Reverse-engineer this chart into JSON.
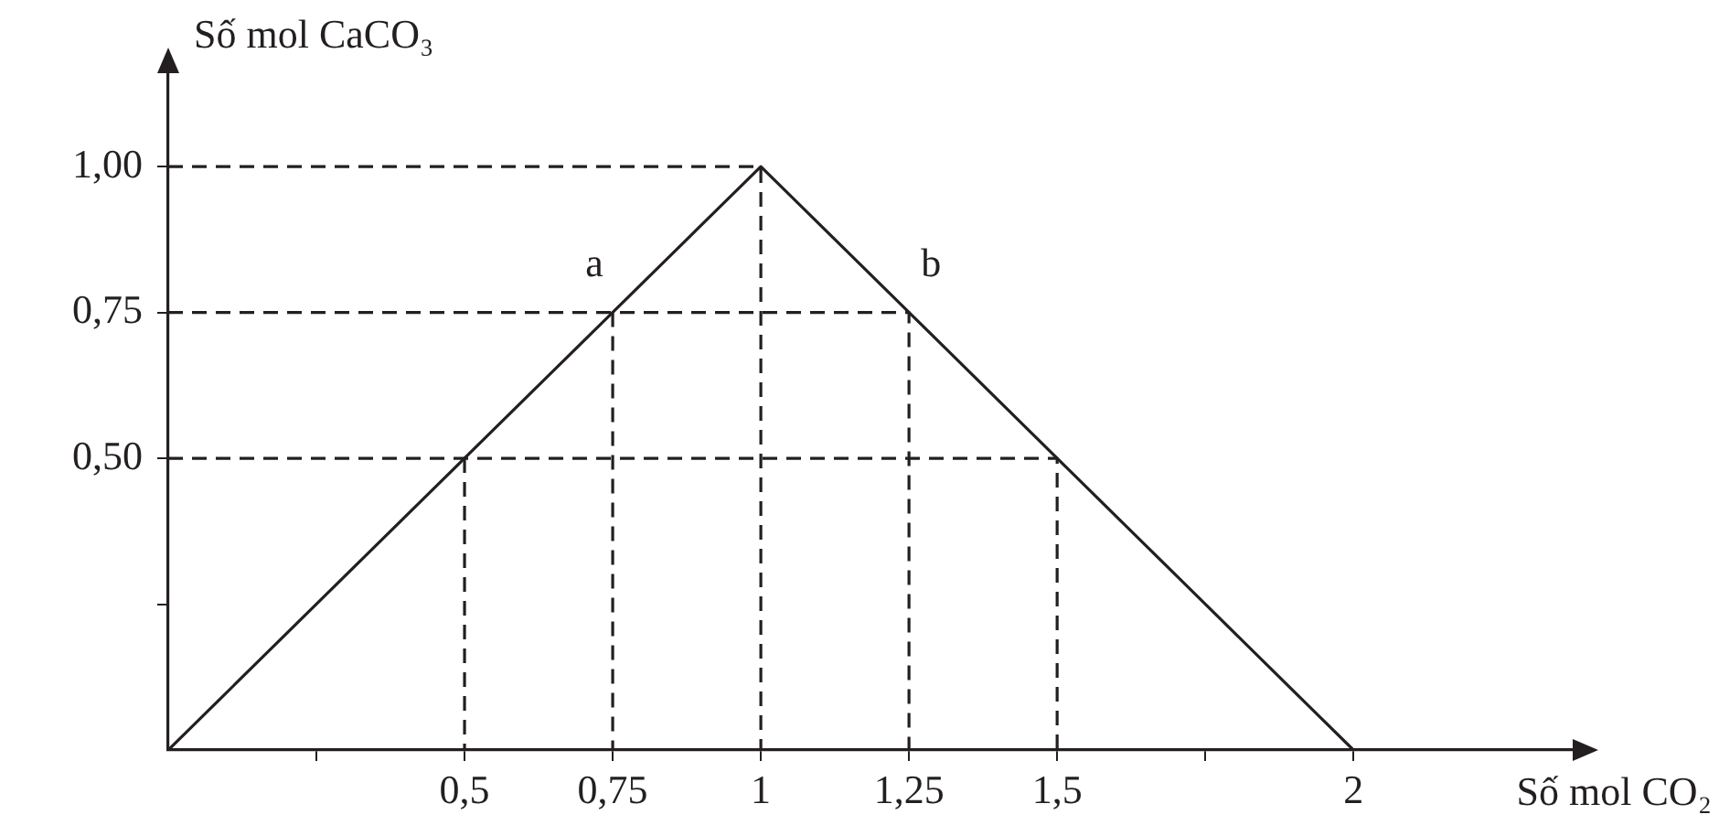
{
  "chart_data": {
    "type": "line",
    "xlabel": "Số mol CO₂",
    "ylabel": "Số mol CaCO₃",
    "xlim": [
      0,
      2.37
    ],
    "ylim": [
      0,
      1.16
    ],
    "xticks": [
      {
        "value": 0.25,
        "label": null
      },
      {
        "value": 0.5,
        "label": "0,5"
      },
      {
        "value": 0.75,
        "label": "0,75"
      },
      1,
      {
        "value": 1.25,
        "label": "1,25"
      },
      {
        "value": 1.5,
        "label": "1,5"
      },
      {
        "value": 1.75,
        "label": null
      },
      2
    ],
    "yticks": [
      {
        "value": 0.25,
        "label": null
      },
      {
        "value": 0.5,
        "label": "0,50"
      },
      {
        "value": 0.75,
        "label": "0,75"
      },
      {
        "value": 1,
        "label": "1,00"
      }
    ],
    "grid": false,
    "legend": false,
    "marker": "none",
    "series": [
      {
        "color": "#231f20",
        "line_style": "solid",
        "x": [
          0,
          1,
          2
        ],
        "values": [
          0,
          1,
          0
        ]
      },
      {
        "color": "#231f20",
        "line_style": "dashed",
        "x": [
          0,
          1.5,
          1.5
        ],
        "values": [
          0.5,
          0.5,
          0
        ]
      },
      {
        "color": "#231f20",
        "line_style": "dashed",
        "x": [
          0.5,
          0.5
        ],
        "values": [
          0.5,
          0
        ]
      },
      {
        "color": "#231f20",
        "line_style": "dashed",
        "x": [
          0,
          1.25,
          1.25
        ],
        "values": [
          0.75,
          0.75,
          0
        ]
      },
      {
        "color": "#231f20",
        "line_style": "dashed",
        "x": [
          0.75,
          0.75
        ],
        "values": [
          0.75,
          0
        ]
      },
      {
        "color": "#231f20",
        "line_style": "dashed",
        "x": [
          0,
          1,
          1
        ],
        "values": [
          1,
          1,
          0
        ]
      }
    ],
    "annotations": [
      {
        "text": "a",
        "x": 0.75,
        "y": 0.75
      },
      {
        "text": "b",
        "x": 1.25,
        "y": 0.75
      }
    ]
  }
}
